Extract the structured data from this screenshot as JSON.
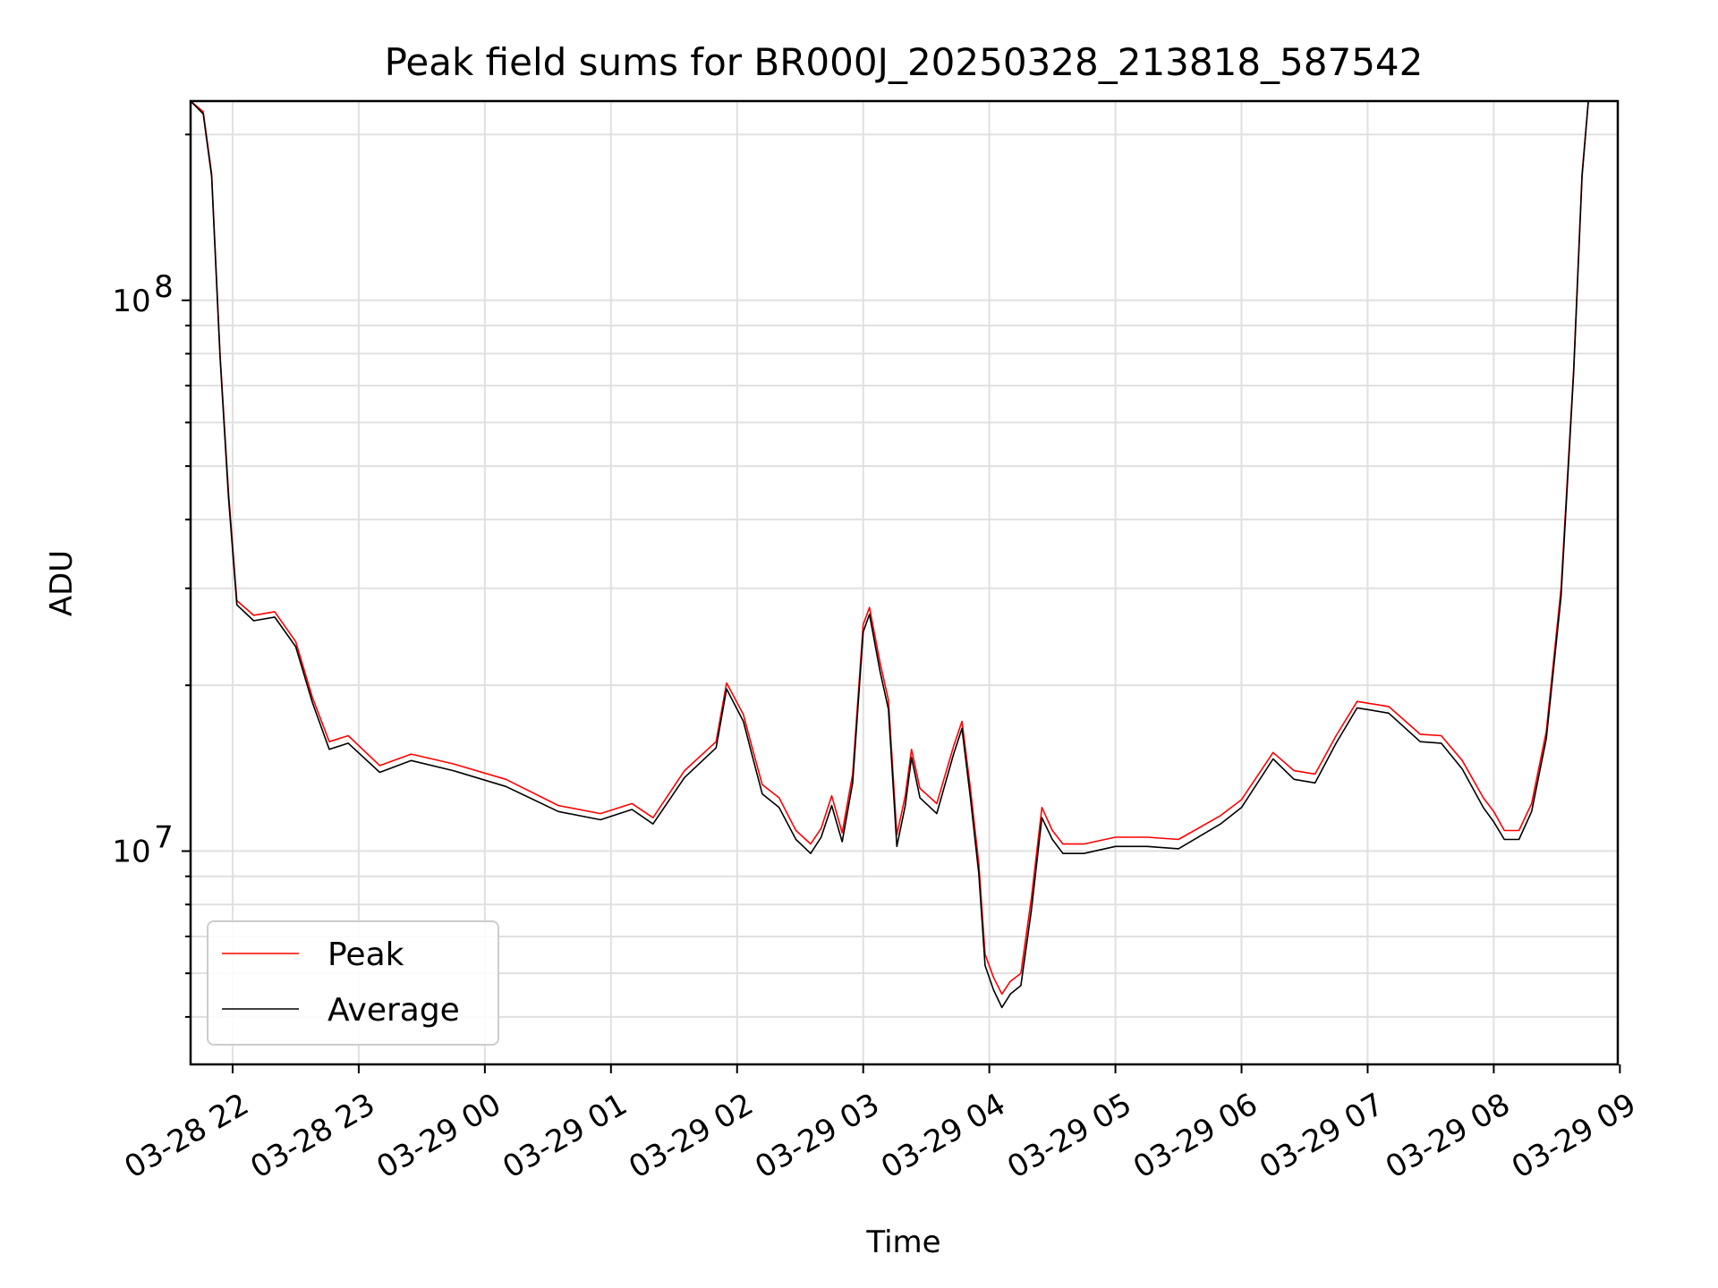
{
  "chart_data": {
    "type": "line",
    "title": "Peak field sums for BR000J_20250328_213818_587542",
    "xlabel": "Time",
    "ylabel": "ADU",
    "y_scale": "log",
    "ylim": [
      4100000,
      230000000
    ],
    "xlim": [
      "2025-03-28 21:40",
      "2025-03-29 08:59"
    ],
    "grid": true,
    "legend_position": "lower-left",
    "x_tick_labels": [
      "03-28 22",
      "03-28 23",
      "03-29 00",
      "03-29 01",
      "03-29 02",
      "03-29 03",
      "03-29 04",
      "03-29 05",
      "03-29 06",
      "03-29 07",
      "03-29 08",
      "03-29 09"
    ],
    "x_ticks": [
      "2025-03-28 22:00",
      "2025-03-28 23:00",
      "2025-03-29 00:00",
      "2025-03-29 01:00",
      "2025-03-29 02:00",
      "2025-03-29 03:00",
      "2025-03-29 04:00",
      "2025-03-29 05:00",
      "2025-03-29 06:00",
      "2025-03-29 07:00",
      "2025-03-29 08:00",
      "2025-03-29 09:00"
    ],
    "y_ticks": [
      {
        "value": 10000000,
        "base": "10",
        "exp": "7"
      },
      {
        "value": 100000000,
        "base": "10",
        "exp": "8"
      }
    ],
    "series": [
      {
        "name": "Peak",
        "color": "#ff0000",
        "x": [
          "2025-03-28 21:40",
          "2025-03-28 21:46",
          "2025-03-28 21:50",
          "2025-03-28 21:54",
          "2025-03-28 21:58",
          "2025-03-28 22:02",
          "2025-03-28 22:10",
          "2025-03-28 22:20",
          "2025-03-28 22:30",
          "2025-03-28 22:38",
          "2025-03-28 22:46",
          "2025-03-28 22:55",
          "2025-03-28 23:10",
          "2025-03-28 23:25",
          "2025-03-28 23:45",
          "2025-03-29 00:10",
          "2025-03-29 00:35",
          "2025-03-29 00:55",
          "2025-03-29 01:10",
          "2025-03-29 01:20",
          "2025-03-29 01:35",
          "2025-03-29 01:50",
          "2025-03-29 01:55",
          "2025-03-29 02:03",
          "2025-03-29 02:07",
          "2025-03-29 02:12",
          "2025-03-29 02:20",
          "2025-03-29 02:28",
          "2025-03-29 02:35",
          "2025-03-29 02:40",
          "2025-03-29 02:45",
          "2025-03-29 02:50",
          "2025-03-29 02:55",
          "2025-03-29 03:00",
          "2025-03-29 03:03",
          "2025-03-29 03:08",
          "2025-03-29 03:12",
          "2025-03-29 03:16",
          "2025-03-29 03:20",
          "2025-03-29 03:23",
          "2025-03-29 03:27",
          "2025-03-29 03:35",
          "2025-03-29 03:43",
          "2025-03-29 03:47",
          "2025-03-29 03:51",
          "2025-03-29 03:55",
          "2025-03-29 03:58",
          "2025-03-29 04:02",
          "2025-03-29 04:06",
          "2025-03-29 04:10",
          "2025-03-29 04:15",
          "2025-03-29 04:20",
          "2025-03-29 04:25",
          "2025-03-29 04:30",
          "2025-03-29 04:35",
          "2025-03-29 04:45",
          "2025-03-29 05:00",
          "2025-03-29 05:15",
          "2025-03-29 05:30",
          "2025-03-29 05:50",
          "2025-03-29 06:00",
          "2025-03-29 06:15",
          "2025-03-29 06:25",
          "2025-03-29 06:35",
          "2025-03-29 06:45",
          "2025-03-29 06:55",
          "2025-03-29 07:10",
          "2025-03-29 07:25",
          "2025-03-29 07:35",
          "2025-03-29 07:45",
          "2025-03-29 07:55",
          "2025-03-29 08:00",
          "2025-03-29 08:05",
          "2025-03-29 08:12",
          "2025-03-29 08:18",
          "2025-03-29 08:25",
          "2025-03-29 08:32",
          "2025-03-29 08:38",
          "2025-03-29 08:42",
          "2025-03-29 08:45"
        ],
        "y": [
          230000000,
          220000000,
          170000000,
          80000000,
          45000000,
          28500000,
          26800000,
          27200000,
          24000000,
          19000000,
          15800000,
          16200000,
          14300000,
          15000000,
          14400000,
          13500000,
          12100000,
          11700000,
          12200000,
          11500000,
          14000000,
          15800000,
          20200000,
          17700000,
          15500000,
          13200000,
          12500000,
          10900000,
          10300000,
          11000000,
          12600000,
          10800000,
          13800000,
          25800000,
          27700000,
          22000000,
          18800000,
          10700000,
          12600000,
          15300000,
          13000000,
          12200000,
          15500000,
          17200000,
          13000000,
          9500000,
          6500000,
          5900000,
          5500000,
          5800000,
          6000000,
          8200000,
          12000000,
          10900000,
          10300000,
          10300000,
          10600000,
          10600000,
          10500000,
          11600000,
          12400000,
          15100000,
          14000000,
          13800000,
          16200000,
          18700000,
          18300000,
          16300000,
          16200000,
          14600000,
          12500000,
          11800000,
          10900000,
          10900000,
          12200000,
          16500000,
          30000000,
          75000000,
          170000000,
          230000000
        ]
      },
      {
        "name": "Average",
        "color": "#000000",
        "x": [
          "2025-03-28 21:40",
          "2025-03-28 21:46",
          "2025-03-28 21:50",
          "2025-03-28 21:54",
          "2025-03-28 21:58",
          "2025-03-28 22:02",
          "2025-03-28 22:10",
          "2025-03-28 22:20",
          "2025-03-28 22:30",
          "2025-03-28 22:38",
          "2025-03-28 22:46",
          "2025-03-28 22:55",
          "2025-03-28 23:10",
          "2025-03-28 23:25",
          "2025-03-28 23:45",
          "2025-03-29 00:10",
          "2025-03-29 00:35",
          "2025-03-29 00:55",
          "2025-03-29 01:10",
          "2025-03-29 01:20",
          "2025-03-29 01:35",
          "2025-03-29 01:50",
          "2025-03-29 01:55",
          "2025-03-29 02:03",
          "2025-03-29 02:07",
          "2025-03-29 02:12",
          "2025-03-29 02:20",
          "2025-03-29 02:28",
          "2025-03-29 02:35",
          "2025-03-29 02:40",
          "2025-03-29 02:45",
          "2025-03-29 02:50",
          "2025-03-29 02:55",
          "2025-03-29 03:00",
          "2025-03-29 03:03",
          "2025-03-29 03:08",
          "2025-03-29 03:12",
          "2025-03-29 03:16",
          "2025-03-29 03:20",
          "2025-03-29 03:23",
          "2025-03-29 03:27",
          "2025-03-29 03:35",
          "2025-03-29 03:43",
          "2025-03-29 03:47",
          "2025-03-29 03:51",
          "2025-03-29 03:55",
          "2025-03-29 03:58",
          "2025-03-29 04:02",
          "2025-03-29 04:06",
          "2025-03-29 04:10",
          "2025-03-29 04:15",
          "2025-03-29 04:20",
          "2025-03-29 04:25",
          "2025-03-29 04:30",
          "2025-03-29 04:35",
          "2025-03-29 04:45",
          "2025-03-29 05:00",
          "2025-03-29 05:15",
          "2025-03-29 05:30",
          "2025-03-29 05:50",
          "2025-03-29 06:00",
          "2025-03-29 06:15",
          "2025-03-29 06:25",
          "2025-03-29 06:35",
          "2025-03-29 06:45",
          "2025-03-29 06:55",
          "2025-03-29 07:10",
          "2025-03-29 07:25",
          "2025-03-29 07:35",
          "2025-03-29 07:45",
          "2025-03-29 07:55",
          "2025-03-29 08:00",
          "2025-03-29 08:05",
          "2025-03-29 08:12",
          "2025-03-29 08:18",
          "2025-03-29 08:25",
          "2025-03-29 08:32",
          "2025-03-29 08:38",
          "2025-03-29 08:42",
          "2025-03-29 08:45"
        ],
        "y": [
          230000000,
          218000000,
          168000000,
          79000000,
          44000000,
          28000000,
          26200000,
          26600000,
          23500000,
          18600000,
          15300000,
          15700000,
          13900000,
          14600000,
          14000000,
          13100000,
          11800000,
          11400000,
          11900000,
          11200000,
          13600000,
          15400000,
          19700000,
          17200000,
          15000000,
          12700000,
          12000000,
          10500000,
          9900000,
          10600000,
          12100000,
          10400000,
          13300000,
          25000000,
          26900000,
          21200000,
          18100000,
          10200000,
          12100000,
          14800000,
          12500000,
          11700000,
          15000000,
          16700000,
          12500000,
          9100000,
          6200000,
          5600000,
          5200000,
          5500000,
          5700000,
          7800000,
          11500000,
          10500000,
          9900000,
          9900000,
          10200000,
          10200000,
          10100000,
          11200000,
          12000000,
          14700000,
          13500000,
          13300000,
          15700000,
          18200000,
          17800000,
          15800000,
          15700000,
          14100000,
          12000000,
          11300000,
          10500000,
          10500000,
          11800000,
          16000000,
          29000000,
          74000000,
          168000000,
          230000000
        ]
      }
    ]
  }
}
